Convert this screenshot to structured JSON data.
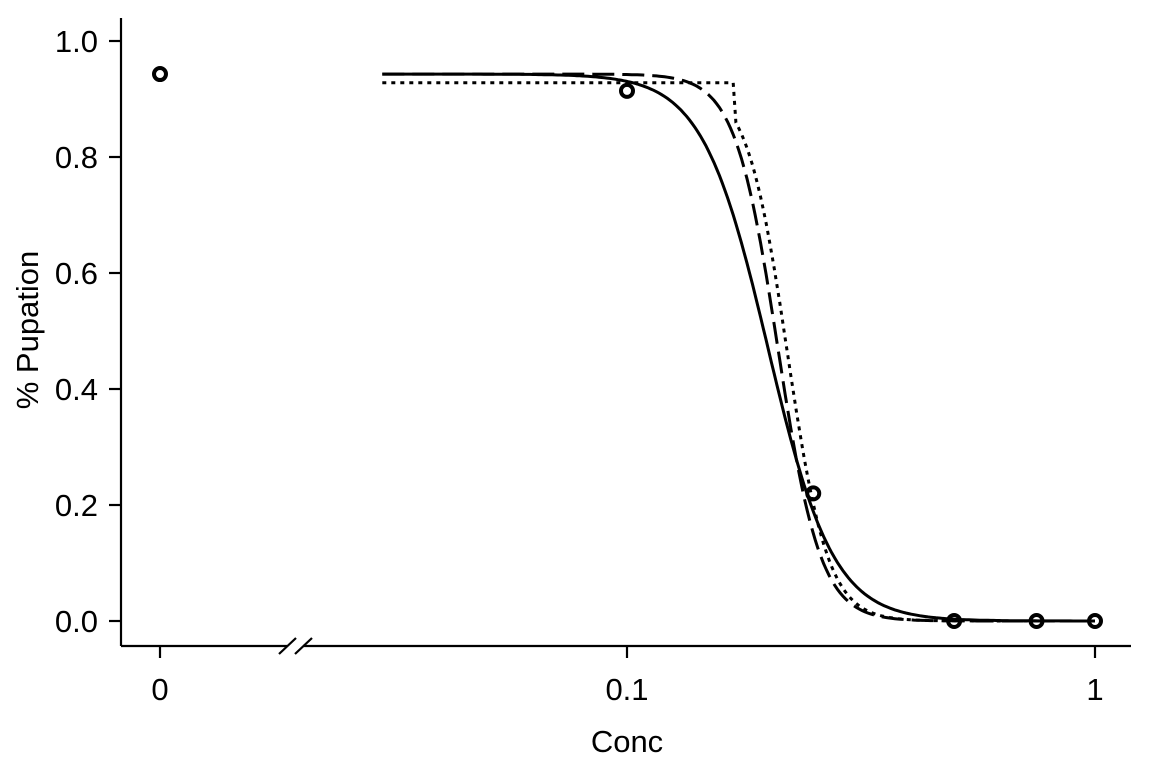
{
  "chart_data": {
    "type": "line",
    "xlabel": "Conc",
    "ylabel": "% Pupation",
    "x_scale": "log",
    "x_break": true,
    "x_ticks": [
      {
        "value": 0,
        "label": "0"
      },
      {
        "value": 0.1,
        "label": "0.1"
      },
      {
        "value": 1,
        "label": "1"
      }
    ],
    "y_ticks": [
      {
        "value": 0.0,
        "label": "0.0"
      },
      {
        "value": 0.2,
        "label": "0.2"
      },
      {
        "value": 0.4,
        "label": "0.4"
      },
      {
        "value": 0.6,
        "label": "0.6"
      },
      {
        "value": 0.8,
        "label": "0.8"
      },
      {
        "value": 1.0,
        "label": "1.0"
      }
    ],
    "ylim": [
      0,
      1
    ],
    "xlim": [
      0.01,
      1.1
    ],
    "grid": false,
    "points": [
      {
        "x": 0,
        "y": 0.943
      },
      {
        "x": 0.1,
        "y": 0.914
      },
      {
        "x": 0.25,
        "y": 0.22
      },
      {
        "x": 0.5,
        "y": 0.0
      },
      {
        "x": 0.75,
        "y": 0.0
      },
      {
        "x": 1.0,
        "y": 0.0
      }
    ],
    "series": [
      {
        "style": "solid",
        "x_start": 0.03,
        "x_end": 1.0,
        "model": {
          "d": 0.943,
          "e": 0.2,
          "b": 6.2
        }
      },
      {
        "style": "dashed",
        "x_start": 0.03,
        "x_end": 1.0,
        "model": {
          "d": 0.943,
          "e": 0.21,
          "b": 9.5
        }
      },
      {
        "style": "dotted",
        "x_start": 0.03,
        "x_end": 1.0,
        "model": {
          "type": "flat-logistic",
          "d": 0.928,
          "plateau_end": 0.17,
          "e": 0.22,
          "b": 10
        }
      }
    ]
  }
}
